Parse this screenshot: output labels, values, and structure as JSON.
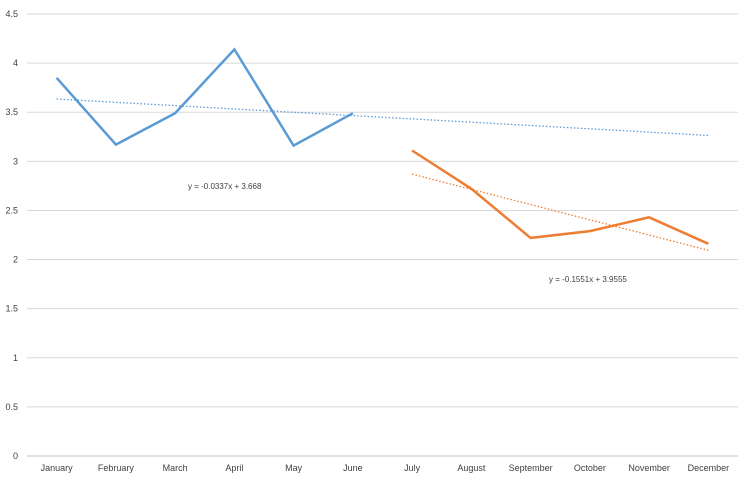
{
  "chart_data": {
    "type": "line",
    "title": "",
    "xlabel": "",
    "ylabel": "",
    "categories": [
      "January",
      "February",
      "March",
      "April",
      "May",
      "June",
      "July",
      "August",
      "September",
      "October",
      "November",
      "December"
    ],
    "ylim": [
      0,
      4.5
    ],
    "yticks": [
      0,
      0.5,
      1,
      1.5,
      2,
      2.5,
      3,
      3.5,
      4,
      4.5
    ],
    "grid": true,
    "legend": "none",
    "series": [
      {
        "color": "#5B9BD5",
        "values": [
          3.85,
          3.17,
          3.49,
          4.14,
          3.16,
          3.49,
          null,
          null,
          null,
          null,
          null,
          null
        ],
        "trendline": {
          "slope": -0.0337,
          "intercept": 3.668,
          "label": "y = -0.0337x + 3.668"
        }
      },
      {
        "color": "#ED7D31",
        "values": [
          null,
          null,
          null,
          null,
          null,
          null,
          3.11,
          2.72,
          2.22,
          2.29,
          2.43,
          2.16
        ],
        "trendline": {
          "slope": -0.1551,
          "intercept": 3.9555,
          "label": "y = -0.1551x + 3.9555"
        }
      }
    ]
  }
}
